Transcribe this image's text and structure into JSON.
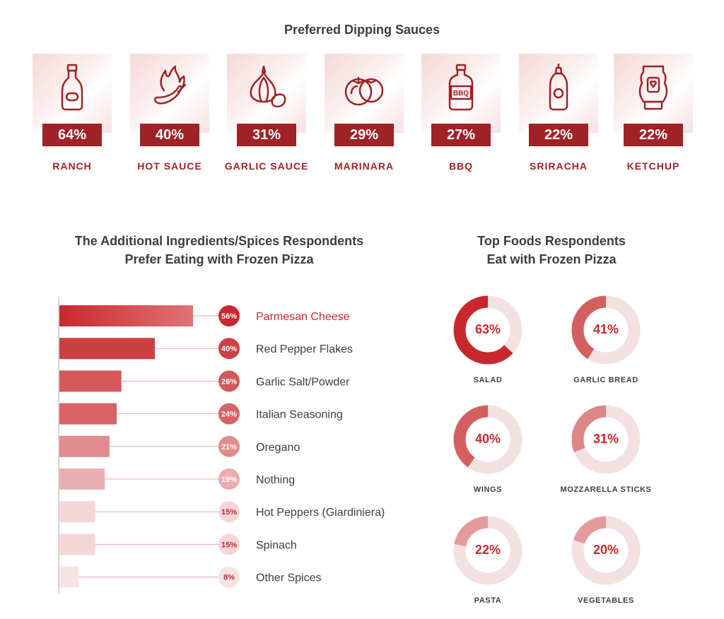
{
  "sauces": {
    "title": "Preferred Dipping Sauces",
    "items": [
      {
        "name": "RANCH",
        "pct": "64%",
        "icon": "ranch-bottle-icon"
      },
      {
        "name": "HOT SAUCE",
        "pct": "40%",
        "icon": "chili-fire-icon"
      },
      {
        "name": "GARLIC SAUCE",
        "pct": "31%",
        "icon": "garlic-icon"
      },
      {
        "name": "MARINARA",
        "pct": "29%",
        "icon": "tomato-icon"
      },
      {
        "name": "BBQ",
        "pct": "27%",
        "icon": "bbq-bottle-icon"
      },
      {
        "name": "SRIRACHA",
        "pct": "22%",
        "icon": "sriracha-bottle-icon"
      },
      {
        "name": "KETCHUP",
        "pct": "22%",
        "icon": "ketchup-bottle-icon"
      }
    ]
  },
  "ingredients": {
    "title_line1": "The Additional Ingredients/Spices Respondents",
    "title_line2": "Prefer Eating with Frozen Pizza"
  },
  "foods": {
    "title_line1": "Top Foods Respondents",
    "title_line2": "Eat with Frozen Pizza"
  },
  "chart_data": [
    {
      "type": "bar",
      "orientation": "horizontal",
      "title": "The Additional Ingredients/Spices Respondents Prefer Eating with Frozen Pizza",
      "categories": [
        "Parmesan Cheese",
        "Red Pepper Flakes",
        "Garlic Salt/Powder",
        "Italian Seasoning",
        "Oregano",
        "Nothing",
        "Hot Peppers (Giardiniera)",
        "Spinach",
        "Other Spices"
      ],
      "values": [
        56,
        40,
        26,
        24,
        21,
        19,
        15,
        15,
        8
      ],
      "value_labels": [
        "56%",
        "40%",
        "26%",
        "24%",
        "21%",
        "19%",
        "15%",
        "15%",
        "8%"
      ],
      "unit": "%",
      "highlight": "Parmesan Cheese"
    },
    {
      "type": "pie",
      "style": "donut",
      "title": "Top Foods Respondents Eat with Frozen Pizza",
      "categories": [
        "SALAD",
        "GARLIC BREAD",
        "WINGS",
        "MOZZARELLA STICKS",
        "PASTA",
        "VEGETABLES"
      ],
      "values": [
        63,
        41,
        40,
        31,
        22,
        20
      ],
      "value_labels": [
        "63%",
        "41%",
        "40%",
        "31%",
        "22%",
        "20%"
      ],
      "unit": "%"
    }
  ],
  "colors": {
    "dark_red": "#9e2226",
    "red": "#c8282d",
    "track": "#f3e1e1",
    "bar_shades": [
      "#c8282d",
      "#cc4044",
      "#d4585a",
      "#d86466",
      "#e08c8c",
      "#e9aeae",
      "#f5d6d6",
      "#f5d6d6",
      "#f8e3e3"
    ],
    "donut_shades": [
      "#c8282d",
      "#d45f61",
      "#d45f61",
      "#de8787",
      "#e49a9a",
      "#e49a9a"
    ]
  }
}
